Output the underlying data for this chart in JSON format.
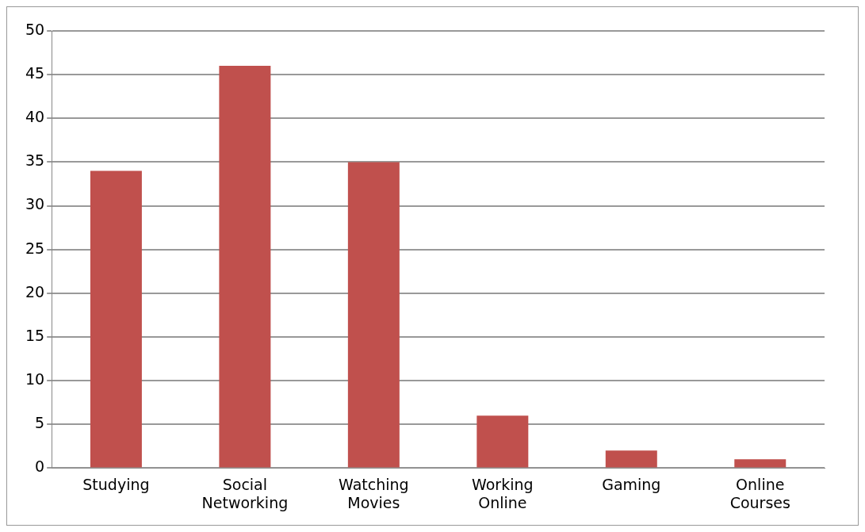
{
  "chart_data": {
    "type": "bar",
    "categories": [
      "Studying",
      "Social Networking",
      "Watching Movies",
      "Working Online",
      "Gaming",
      "Online Courses"
    ],
    "values": [
      34,
      46,
      35,
      6,
      2,
      1
    ],
    "color": "#c0504d",
    "ylim": [
      0,
      50
    ],
    "yticks": [
      0,
      5,
      10,
      15,
      20,
      25,
      30,
      35,
      40,
      45,
      50
    ],
    "grid": "y"
  }
}
